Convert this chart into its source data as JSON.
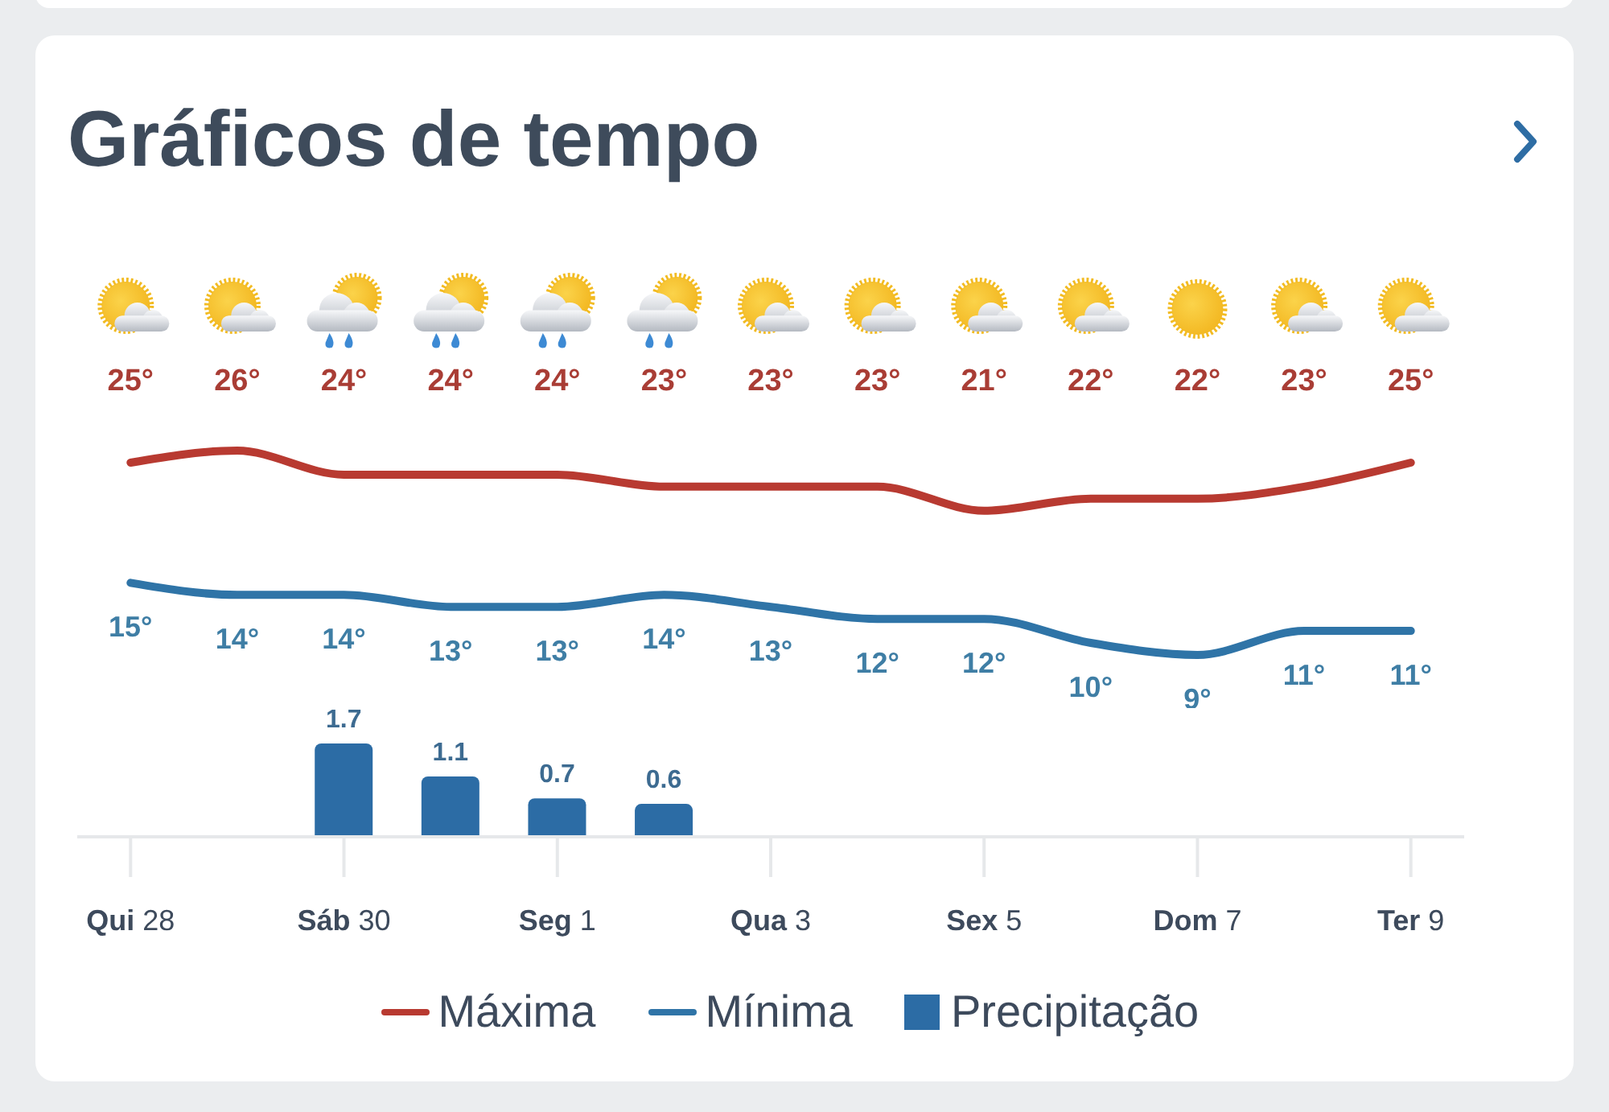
{
  "chart_data": [
    {
      "type": "line",
      "title": "Gráficos de tempo",
      "categories": [
        null,
        null,
        null,
        null,
        null,
        null,
        null,
        null,
        null,
        null,
        null,
        null,
        null
      ],
      "series": [
        {
          "name": "Máxima",
          "color": "#b83a31",
          "values": [
            25,
            26,
            24,
            24,
            24,
            23,
            23,
            23,
            21,
            22,
            22,
            23,
            25
          ],
          "value_labels": [
            "25°",
            "26°",
            "24°",
            "24°",
            "24°",
            "23°",
            "23°",
            "23°",
            "21°",
            "22°",
            "22°",
            "23°",
            "25°"
          ]
        },
        {
          "name": "Mínima",
          "color": "#2f74a7",
          "values": [
            15,
            14,
            14,
            13,
            13,
            14,
            13,
            12,
            12,
            10,
            9,
            11,
            11
          ],
          "value_labels": [
            "15°",
            "14°",
            "14°",
            "13°",
            "13°",
            "14°",
            "13°",
            "12°",
            "12°",
            "10°",
            "9°",
            "11°",
            "11°"
          ]
        }
      ],
      "legend": "bottom",
      "tick_labels": false
    },
    {
      "type": "bar",
      "categories": [
        "Qui 28",
        null,
        "Sáb 30",
        null,
        "Seg 1",
        null,
        "Qua 3",
        null,
        "Sex 5",
        null,
        "Dom 7",
        null,
        "Ter 9"
      ],
      "series": [
        {
          "name": "Precipitação",
          "color": "#2c6ca5",
          "values": [
            null,
            null,
            1.7,
            1.1,
            0.7,
            0.6,
            null,
            null,
            null,
            null,
            null,
            null,
            null
          ],
          "value_labels": [
            null,
            null,
            "1.7",
            "1.1",
            "0.7",
            "0.6",
            null,
            null,
            null,
            null,
            null,
            null,
            null
          ]
        }
      ],
      "legend": "bottom",
      "tick_labels": "x"
    }
  ]
}
